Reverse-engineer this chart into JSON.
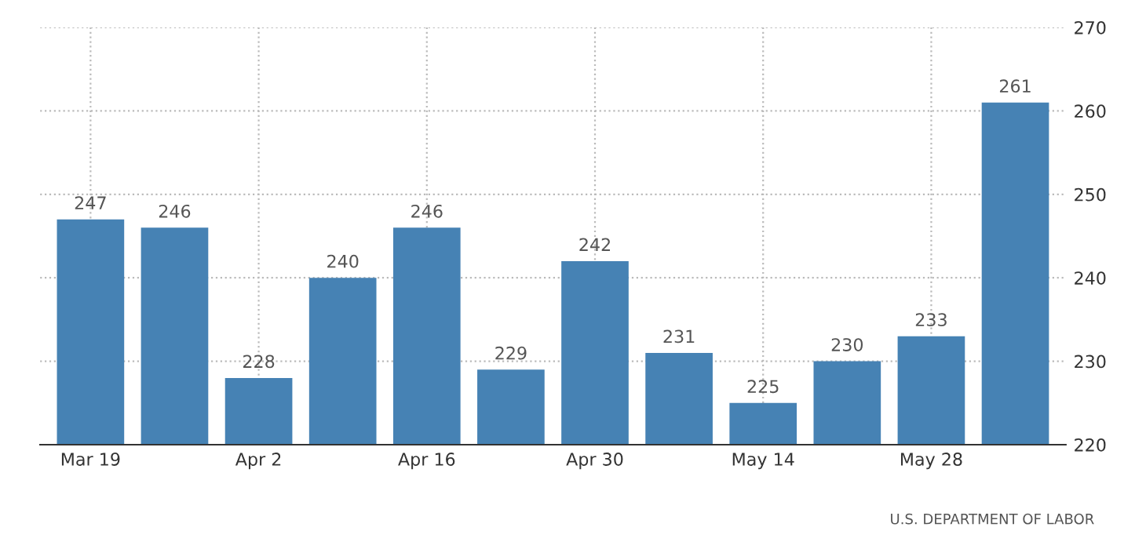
{
  "chart_data": {
    "type": "bar",
    "categories": [
      "Mar 19",
      null,
      "Apr 2",
      null,
      "Apr 16",
      null,
      "Apr 30",
      null,
      "May 14",
      null,
      "May 28",
      null
    ],
    "values": [
      247,
      246,
      228,
      240,
      246,
      229,
      242,
      231,
      225,
      230,
      233,
      261
    ],
    "color": "#4682b4",
    "ylim": [
      220,
      270
    ],
    "yticks": [
      220,
      230,
      240,
      250,
      260,
      270
    ],
    "grid": true,
    "data_labels": true,
    "annotations": [
      "U.S. DEPARTMENT OF LABOR"
    ]
  }
}
